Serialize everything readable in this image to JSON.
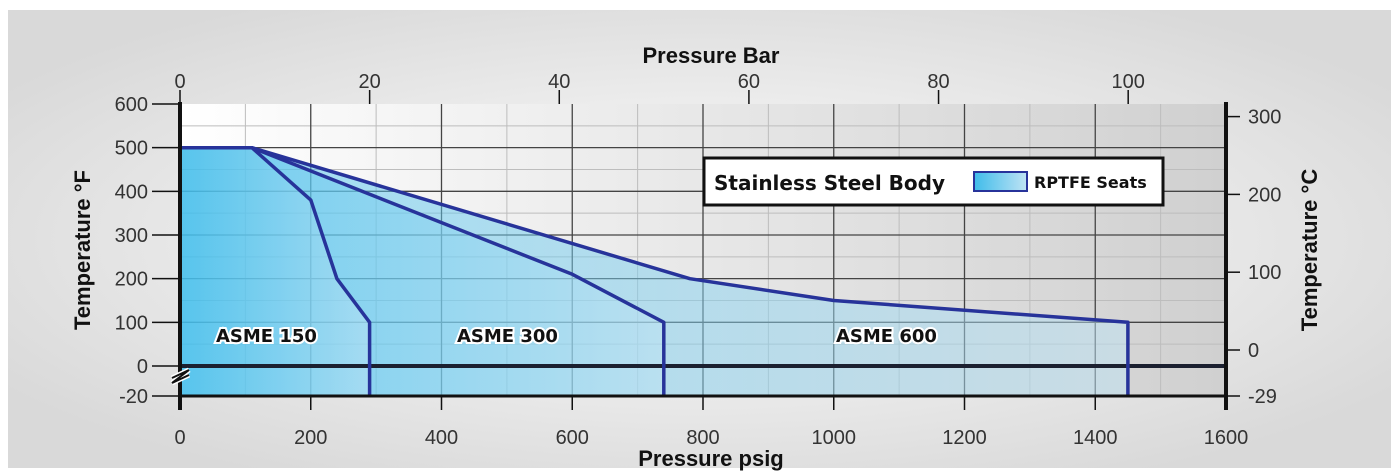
{
  "chart_data": {
    "type": "area",
    "colors": {
      "curve": "#27339a",
      "zero_line": "#1b2030",
      "fill_dark": "#3fbcea",
      "fill_light": "#bfe3f4",
      "panel_light": "#ffffff",
      "panel_dark": "#d0d0d0"
    },
    "legend": {
      "title": "Stainless Steel Body",
      "entry": "RPTFE Seats",
      "placement": "top-right"
    },
    "axes": {
      "x_bottom": {
        "label": "Pressure psig",
        "range": [
          0,
          1600
        ],
        "ticks": [
          "0",
          "200",
          "400",
          "600",
          "800",
          "1000",
          "1200",
          "1400",
          "1600"
        ]
      },
      "x_top": {
        "label": "Pressure Bar",
        "range": [
          0,
          110.32
        ],
        "ticks": [
          "0",
          "20",
          "40",
          "60",
          "80",
          "100"
        ]
      },
      "y_left": {
        "label": "Temperature °F",
        "ticks": [
          "-20",
          "0",
          "100",
          "200",
          "300",
          "400",
          "500",
          "600"
        ]
      },
      "y_right": {
        "label": "Temperature °C",
        "ticks": [
          "-29",
          "0",
          "100",
          "200",
          "300"
        ]
      },
      "grid": true
    },
    "series": [
      {
        "name": "ASME 150",
        "points": [
          [
            0,
            500
          ],
          [
            110,
            500
          ],
          [
            200,
            380
          ],
          [
            240,
            200
          ],
          [
            290,
            100
          ],
          [
            290,
            -20
          ]
        ]
      },
      {
        "name": "ASME 300",
        "points": [
          [
            0,
            500
          ],
          [
            110,
            500
          ],
          [
            600,
            210
          ],
          [
            740,
            100
          ],
          [
            740,
            -20
          ]
        ]
      },
      {
        "name": "ASME 600",
        "points": [
          [
            0,
            500
          ],
          [
            110,
            500
          ],
          [
            780,
            200
          ],
          [
            1000,
            150
          ],
          [
            1450,
            100
          ],
          [
            1450,
            -20
          ]
        ]
      }
    ]
  }
}
